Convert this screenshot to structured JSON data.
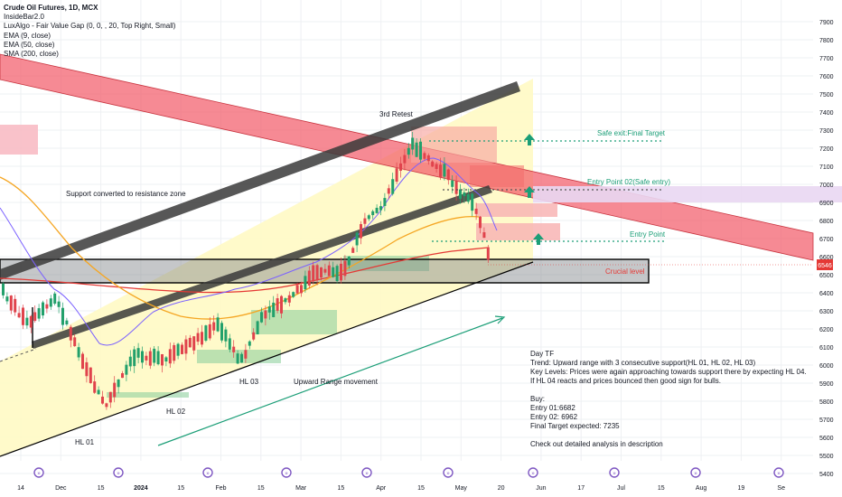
{
  "legend": {
    "title": "Crude Oil Futures, 1D, MCX",
    "lines": [
      "InsideBar2.0",
      "LuxAlgo - Fair Value Gap (0, 0, , 20, Top Right, Small)",
      "EMA (9, close)",
      "EMA (50, close)",
      "SMA (200, close)"
    ]
  },
  "annotations": {
    "retest": "3rd Retest",
    "support_resistance": "Support converted to resistance zone",
    "safe_exit": "Safe exit:Final Target",
    "entry_point_02": "Entry Point 02(Safe entry)",
    "entry_point": "Entry Point",
    "crucial_level": "Crucial level",
    "hl01": "HL 01",
    "hl02": "HL 02",
    "hl03": "HL 03",
    "upward_range": "Upward Range movement"
  },
  "notes": [
    "Day  TF",
    "Trend: Upward range  with 3 consecutive support(HL 01, HL 02, HL 03)",
    "Key Levels: Prices were again approaching towards support there by expecting HL 04.",
    "  If HL 04 reacts and prices bounced then good sign for bulls.",
    "",
    "Buy:",
    "Entry 01:6682",
    "Entry 02: 6962",
    "Final Target expected: 7235",
    "",
    "Check out detailed analysis in description"
  ],
  "price_tag": "6546",
  "colors": {
    "up": "#22a06b",
    "down": "#e0434c",
    "band": "#f2596680",
    "channel": "#444444",
    "range_fill": "#fff9c4",
    "target": "#26a69a"
  },
  "chart_data": {
    "type": "candlestick",
    "title": "Crude Oil Futures, 1D, MCX",
    "ylim": [
      5400,
      8000
    ],
    "y_ticks": [
      5400,
      5500,
      5600,
      5700,
      5800,
      5900,
      6000,
      6100,
      6200,
      6300,
      6400,
      6500,
      6600,
      6700,
      6800,
      6900,
      7000,
      7100,
      7200,
      7300,
      7400,
      7500,
      7600,
      7700,
      7800,
      7900
    ],
    "x_ticks": [
      "14",
      "Dec",
      "15",
      "2024",
      "15",
      "Feb",
      "15",
      "Mar",
      "15",
      "Apr",
      "15",
      "May",
      "20",
      "Jun",
      "17",
      "Jul",
      "15",
      "Aug",
      "19",
      "Se"
    ],
    "levels": {
      "entry_01": 6682,
      "entry_02": 6962,
      "final_target": 7235,
      "last_price": 6546
    },
    "series": [
      {
        "name": "EMA (9, close)"
      },
      {
        "name": "EMA (50, close)"
      },
      {
        "name": "SMA (200, close)"
      }
    ]
  }
}
